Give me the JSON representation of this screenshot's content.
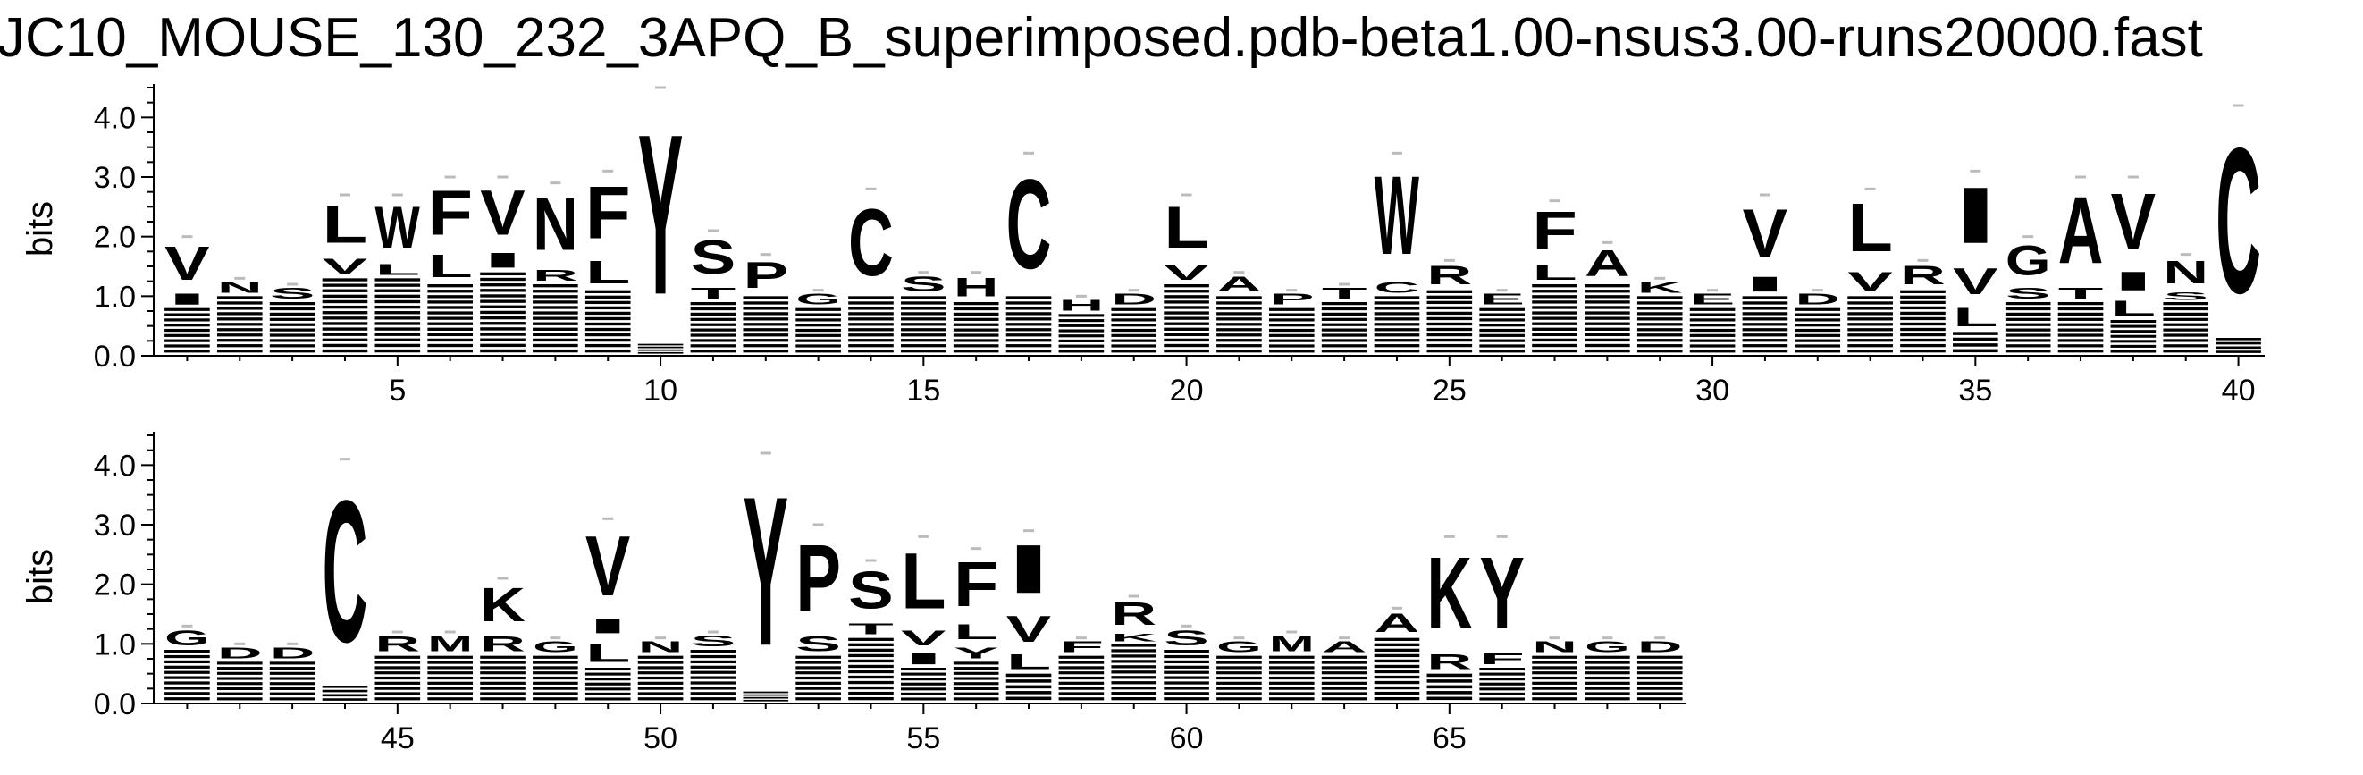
{
  "chart_data": {
    "type": "sequence-logo",
    "title": "JC10_MOUSE_130_232_3APQ_B_superimposed.pdb-beta1.00-nsus3.00-runs20000.fast",
    "ylabel": "bits",
    "ylim": [
      0,
      4.5
    ],
    "yticks": [
      "0.0",
      "1.0",
      "2.0",
      "3.0",
      "4.0"
    ],
    "panels": [
      {
        "xrange": [
          1,
          40
        ],
        "xticks": [
          "5",
          "10",
          "15",
          "20",
          "25",
          "30",
          "35",
          "40"
        ],
        "positions": [
          {
            "pos": 1,
            "total": 2.0,
            "letters": [
              {
                "l": "V",
                "h": 0.9
              },
              {
                "l": "I",
                "h": 0.3
              }
            ]
          },
          {
            "pos": 2,
            "total": 1.3,
            "letters": [
              {
                "l": "N",
                "h": 0.3
              }
            ]
          },
          {
            "pos": 3,
            "total": 1.2,
            "letters": [
              {
                "l": "S",
                "h": 0.3
              }
            ]
          },
          {
            "pos": 4,
            "total": 2.7,
            "letters": [
              {
                "l": "L",
                "h": 1.0
              },
              {
                "l": "V",
                "h": 0.4
              }
            ]
          },
          {
            "pos": 5,
            "total": 2.7,
            "letters": [
              {
                "l": "W",
                "h": 1.1
              },
              {
                "l": "L",
                "h": 0.3
              }
            ]
          },
          {
            "pos": 6,
            "total": 3.0,
            "letters": [
              {
                "l": "F",
                "h": 1.2
              },
              {
                "l": "L",
                "h": 0.6
              }
            ]
          },
          {
            "pos": 7,
            "total": 3.0,
            "letters": [
              {
                "l": "V",
                "h": 1.2
              },
              {
                "l": "I",
                "h": 0.4
              }
            ]
          },
          {
            "pos": 8,
            "total": 2.9,
            "letters": [
              {
                "l": "N",
                "h": 1.4
              },
              {
                "l": "R",
                "h": 0.3
              }
            ]
          },
          {
            "pos": 9,
            "total": 3.1,
            "letters": [
              {
                "l": "F",
                "h": 1.4
              },
              {
                "l": "L",
                "h": 0.6
              }
            ]
          },
          {
            "pos": 10,
            "total": 4.5,
            "letters": [
              {
                "l": "Y",
                "h": 4.3
              }
            ]
          },
          {
            "pos": 11,
            "total": 2.1,
            "letters": [
              {
                "l": "S",
                "h": 0.9
              },
              {
                "l": "T",
                "h": 0.3
              }
            ]
          },
          {
            "pos": 12,
            "total": 1.7,
            "letters": [
              {
                "l": "P",
                "h": 0.7
              }
            ]
          },
          {
            "pos": 13,
            "total": 1.1,
            "letters": [
              {
                "l": "G",
                "h": 0.3
              }
            ]
          },
          {
            "pos": 14,
            "total": 2.8,
            "letters": [
              {
                "l": "C",
                "h": 1.8
              }
            ]
          },
          {
            "pos": 15,
            "total": 1.4,
            "letters": [
              {
                "l": "S",
                "h": 0.4
              }
            ]
          },
          {
            "pos": 16,
            "total": 1.4,
            "letters": [
              {
                "l": "H",
                "h": 0.5
              }
            ]
          },
          {
            "pos": 17,
            "total": 3.4,
            "letters": [
              {
                "l": "C",
                "h": 2.4
              }
            ]
          },
          {
            "pos": 18,
            "total": 1.0,
            "letters": [
              {
                "l": "H",
                "h": 0.3
              }
            ]
          },
          {
            "pos": 19,
            "total": 1.1,
            "letters": [
              {
                "l": "D",
                "h": 0.3
              }
            ]
          },
          {
            "pos": 20,
            "total": 2.7,
            "letters": [
              {
                "l": "L",
                "h": 1.1
              },
              {
                "l": "V",
                "h": 0.4
              }
            ]
          },
          {
            "pos": 21,
            "total": 1.4,
            "letters": [
              {
                "l": "A",
                "h": 0.4
              }
            ]
          },
          {
            "pos": 22,
            "total": 1.1,
            "letters": [
              {
                "l": "P",
                "h": 0.3
              }
            ]
          },
          {
            "pos": 23,
            "total": 1.2,
            "letters": [
              {
                "l": "T",
                "h": 0.3
              }
            ]
          },
          {
            "pos": 24,
            "total": 3.4,
            "letters": [
              {
                "l": "W",
                "h": 2.1
              },
              {
                "l": "C",
                "h": 0.3
              }
            ]
          },
          {
            "pos": 25,
            "total": 1.6,
            "letters": [
              {
                "l": "R",
                "h": 0.5
              }
            ]
          },
          {
            "pos": 26,
            "total": 1.1,
            "letters": [
              {
                "l": "E",
                "h": 0.3
              }
            ]
          },
          {
            "pos": 27,
            "total": 2.6,
            "letters": [
              {
                "l": "F",
                "h": 1.0
              },
              {
                "l": "L",
                "h": 0.4
              }
            ]
          },
          {
            "pos": 28,
            "total": 1.9,
            "letters": [
              {
                "l": "A",
                "h": 0.7
              }
            ]
          },
          {
            "pos": 29,
            "total": 1.3,
            "letters": [
              {
                "l": "K",
                "h": 0.3
              }
            ]
          },
          {
            "pos": 30,
            "total": 1.1,
            "letters": [
              {
                "l": "E",
                "h": 0.3
              }
            ]
          },
          {
            "pos": 31,
            "total": 2.7,
            "letters": [
              {
                "l": "V",
                "h": 1.3
              },
              {
                "l": "I",
                "h": 0.4
              }
            ]
          },
          {
            "pos": 32,
            "total": 1.1,
            "letters": [
              {
                "l": "D",
                "h": 0.3
              }
            ]
          },
          {
            "pos": 33,
            "total": 2.8,
            "letters": [
              {
                "l": "L",
                "h": 1.3
              },
              {
                "l": "V",
                "h": 0.5
              }
            ]
          },
          {
            "pos": 34,
            "total": 1.6,
            "letters": [
              {
                "l": "R",
                "h": 0.5
              }
            ]
          },
          {
            "pos": 35,
            "total": 3.1,
            "letters": [
              {
                "l": "I",
                "h": 1.5
              },
              {
                "l": "V",
                "h": 0.7
              },
              {
                "l": "L",
                "h": 0.5
              }
            ]
          },
          {
            "pos": 36,
            "total": 2.0,
            "letters": [
              {
                "l": "G",
                "h": 0.8
              },
              {
                "l": "S",
                "h": 0.3
              }
            ]
          },
          {
            "pos": 37,
            "total": 3.0,
            "letters": [
              {
                "l": "A",
                "h": 1.8
              },
              {
                "l": "T",
                "h": 0.3
              }
            ]
          },
          {
            "pos": 38,
            "total": 3.0,
            "letters": [
              {
                "l": "V",
                "h": 1.5
              },
              {
                "l": "I",
                "h": 0.5
              },
              {
                "l": "L",
                "h": 0.4
              }
            ]
          },
          {
            "pos": 39,
            "total": 1.7,
            "letters": [
              {
                "l": "N",
                "h": 0.6
              },
              {
                "l": "S",
                "h": 0.2
              }
            ]
          },
          {
            "pos": 40,
            "total": 4.2,
            "letters": [
              {
                "l": "C",
                "h": 3.9
              }
            ]
          }
        ]
      },
      {
        "xrange": [
          41,
          69
        ],
        "xticks": [
          "45",
          "50",
          "55",
          "60",
          "65"
        ],
        "positions": [
          {
            "pos": 41,
            "total": 1.3,
            "letters": [
              {
                "l": "G",
                "h": 0.4
              }
            ]
          },
          {
            "pos": 42,
            "total": 1.0,
            "letters": [
              {
                "l": "D",
                "h": 0.3
              }
            ]
          },
          {
            "pos": 43,
            "total": 1.0,
            "letters": [
              {
                "l": "D",
                "h": 0.3
              }
            ]
          },
          {
            "pos": 44,
            "total": 4.1,
            "letters": [
              {
                "l": "C",
                "h": 3.8
              }
            ]
          },
          {
            "pos": 45,
            "total": 1.2,
            "letters": [
              {
                "l": "R",
                "h": 0.4
              }
            ]
          },
          {
            "pos": 46,
            "total": 1.2,
            "letters": [
              {
                "l": "M",
                "h": 0.4
              }
            ]
          },
          {
            "pos": 47,
            "total": 2.1,
            "letters": [
              {
                "l": "K",
                "h": 0.9
              },
              {
                "l": "R",
                "h": 0.4
              }
            ]
          },
          {
            "pos": 48,
            "total": 1.1,
            "letters": [
              {
                "l": "G",
                "h": 0.3
              }
            ]
          },
          {
            "pos": 49,
            "total": 3.1,
            "letters": [
              {
                "l": "V",
                "h": 1.6
              },
              {
                "l": "I",
                "h": 0.4
              },
              {
                "l": "L",
                "h": 0.5
              }
            ]
          },
          {
            "pos": 50,
            "total": 1.1,
            "letters": [
              {
                "l": "N",
                "h": 0.3
              }
            ]
          },
          {
            "pos": 51,
            "total": 1.2,
            "letters": [
              {
                "l": "S",
                "h": 0.3
              }
            ]
          },
          {
            "pos": 52,
            "total": 4.2,
            "letters": [
              {
                "l": "Y",
                "h": 4.0
              }
            ]
          },
          {
            "pos": 53,
            "total": 3.0,
            "letters": [
              {
                "l": "P",
                "h": 1.8
              },
              {
                "l": "S",
                "h": 0.4
              }
            ]
          },
          {
            "pos": 54,
            "total": 2.4,
            "letters": [
              {
                "l": "S",
                "h": 1.0
              },
              {
                "l": "T",
                "h": 0.3
              }
            ]
          },
          {
            "pos": 55,
            "total": 2.8,
            "letters": [
              {
                "l": "L",
                "h": 1.5
              },
              {
                "l": "V",
                "h": 0.4
              },
              {
                "l": "I",
                "h": 0.3
              }
            ]
          },
          {
            "pos": 56,
            "total": 2.6,
            "letters": [
              {
                "l": "F",
                "h": 1.2
              },
              {
                "l": "L",
                "h": 0.4
              },
              {
                "l": "Y",
                "h": 0.3
              }
            ]
          },
          {
            "pos": 57,
            "total": 2.9,
            "letters": [
              {
                "l": "I",
                "h": 1.3
              },
              {
                "l": "V",
                "h": 0.7
              },
              {
                "l": "L",
                "h": 0.4
              }
            ]
          },
          {
            "pos": 58,
            "total": 1.1,
            "letters": [
              {
                "l": "F",
                "h": 0.3
              }
            ]
          },
          {
            "pos": 59,
            "total": 1.8,
            "letters": [
              {
                "l": "R",
                "h": 0.6
              },
              {
                "l": "K",
                "h": 0.2
              }
            ]
          },
          {
            "pos": 60,
            "total": 1.3,
            "letters": [
              {
                "l": "S",
                "h": 0.4
              }
            ]
          },
          {
            "pos": 61,
            "total": 1.1,
            "letters": [
              {
                "l": "G",
                "h": 0.3
              }
            ]
          },
          {
            "pos": 62,
            "total": 1.2,
            "letters": [
              {
                "l": "M",
                "h": 0.4
              }
            ]
          },
          {
            "pos": 63,
            "total": 1.1,
            "letters": [
              {
                "l": "A",
                "h": 0.3
              }
            ]
          },
          {
            "pos": 64,
            "total": 1.6,
            "letters": [
              {
                "l": "A",
                "h": 0.5
              }
            ]
          },
          {
            "pos": 65,
            "total": 2.8,
            "letters": [
              {
                "l": "K",
                "h": 1.9
              },
              {
                "l": "R",
                "h": 0.4
              }
            ]
          },
          {
            "pos": 66,
            "total": 2.8,
            "letters": [
              {
                "l": "Y",
                "h": 1.9
              },
              {
                "l": "F",
                "h": 0.3
              }
            ]
          },
          {
            "pos": 67,
            "total": 1.1,
            "letters": [
              {
                "l": "N",
                "h": 0.3
              }
            ]
          },
          {
            "pos": 68,
            "total": 1.1,
            "letters": [
              {
                "l": "G",
                "h": 0.3
              }
            ]
          },
          {
            "pos": 69,
            "total": 1.1,
            "letters": [
              {
                "l": "D",
                "h": 0.3
              }
            ]
          }
        ]
      }
    ]
  }
}
